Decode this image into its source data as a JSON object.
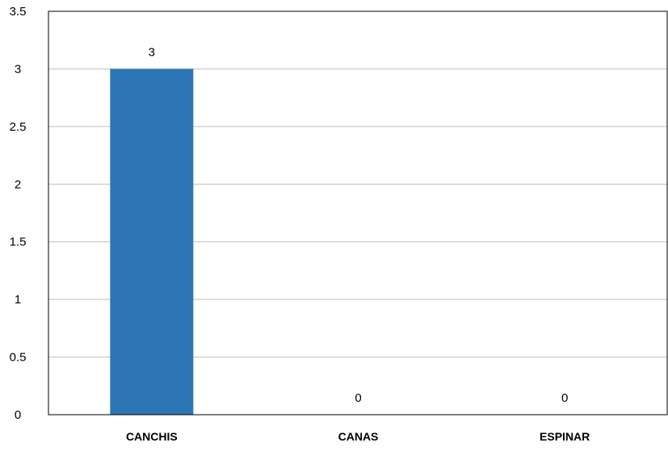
{
  "chart_data": {
    "type": "bar",
    "categories": [
      "CANCHIS",
      "CANAS",
      "ESPINAR"
    ],
    "series": [
      {
        "values": [
          3,
          0,
          0
        ]
      }
    ],
    "data_labels": [
      "3",
      "0",
      "0"
    ],
    "title": "",
    "xlabel": "",
    "ylabel": "",
    "ylim": [
      0,
      3.5
    ],
    "yticks": [
      0,
      0.5,
      1,
      1.5,
      2,
      2.5,
      3,
      3.5
    ],
    "ytick_labels": [
      "0",
      "0.5",
      "1",
      "1.5",
      "2",
      "2.5",
      "3",
      "3.5"
    ],
    "grid": true,
    "legend": "none",
    "colors": {
      "bar": "#2E75B6",
      "grid": "#BFBFBF",
      "axis": "#000000"
    }
  }
}
